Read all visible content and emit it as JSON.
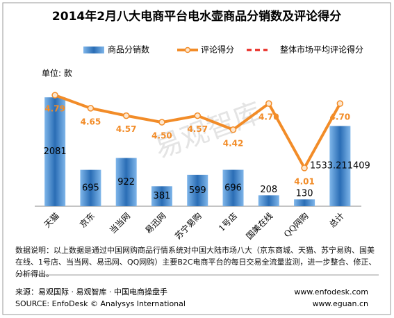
{
  "chart_data": {
    "type": "bar_line",
    "title": "2014年2月八大电商平台电水壶商品分销数及评论得分",
    "unit_label": "单位: 款",
    "watermark": "易观智库",
    "categories": [
      "天猫",
      "京东",
      "当当网",
      "易迅网",
      "苏宁易购",
      "1号店",
      "国美在线",
      "QQ网购",
      "总计"
    ],
    "series": [
      {
        "name": "商品分销数",
        "type": "bar",
        "color": "#2a6db5",
        "values": [
          2081,
          695,
          922,
          381,
          599,
          696,
          208,
          130,
          1533.211409
        ]
      },
      {
        "name": "评论得分",
        "type": "line",
        "axis": "y2",
        "color": "#f28c28",
        "values": [
          4.79,
          4.65,
          4.57,
          4.5,
          4.57,
          4.42,
          4.7,
          4.01,
          4.7
        ],
        "value_labels": [
          "4.79",
          "4.65",
          "4.57",
          "4.50",
          "4.57",
          "4.42",
          "4.70",
          "4.01",
          "4.70"
        ]
      },
      {
        "name": "整体市场平均评论得分",
        "type": "dashed",
        "axis": "y2",
        "color": "#e8241c",
        "values": [
          null,
          null,
          null,
          null,
          null,
          null,
          null,
          null,
          null
        ]
      }
    ],
    "ylim": [
      0,
      2800
    ],
    "y2lim": [
      3.6,
      5.17
    ],
    "note": "数据说明：以上数据是通过中国网购商品行情系统对中国大陆市场八大（京东商城、天猫、苏宁易购、国美在线、1号店、当当网、易迅网、QQ网购）主要B2C电商平台的每日交易全流量监测，进一步整合、修正、分析得出。",
    "source_cn": "来源：易观国际 · 易观智库 · 中国电商操盘手",
    "source_en": "SOURCE: EnfoDesk © Analysys International",
    "site1": "www.enfodesk.com",
    "site2": "www.eguan.cn"
  }
}
